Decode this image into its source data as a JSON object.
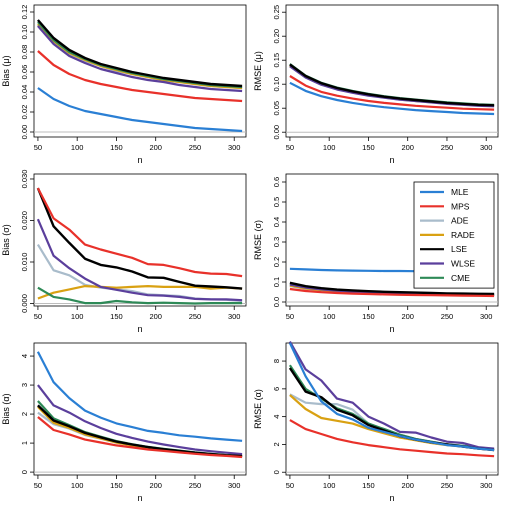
{
  "chart_data": [
    {
      "type": "line",
      "xlabel": "n",
      "ylabel": "Bias (μ)",
      "x": [
        50,
        70,
        90,
        110,
        130,
        150,
        170,
        190,
        210,
        230,
        250,
        270,
        290,
        310
      ],
      "xticks": [
        50,
        100,
        150,
        200,
        250,
        300
      ],
      "yticks": [
        0.0,
        0.02,
        0.04,
        0.06,
        0.08,
        0.1,
        0.12
      ],
      "ytick_labels": [
        "0.00",
        "0.02",
        "0.04",
        "0.06",
        "0.08",
        "0.10",
        "0.12"
      ],
      "xlim": [
        45,
        315
      ],
      "ylim": [
        -0.005,
        0.127
      ],
      "reference_line": 0,
      "series": [
        {
          "name": "MLE",
          "values": [
            0.044,
            0.033,
            0.026,
            0.021,
            0.018,
            0.015,
            0.012,
            0.01,
            0.008,
            0.006,
            0.004,
            0.003,
            0.002,
            0.001
          ]
        },
        {
          "name": "MPS",
          "values": [
            0.081,
            0.067,
            0.058,
            0.052,
            0.048,
            0.045,
            0.042,
            0.04,
            0.038,
            0.036,
            0.034,
            0.033,
            0.032,
            0.031
          ]
        },
        {
          "name": "ADE",
          "values": [
            0.107,
            0.09,
            0.078,
            0.071,
            0.066,
            0.061,
            0.058,
            0.055,
            0.052,
            0.05,
            0.048,
            0.046,
            0.045,
            0.044
          ]
        },
        {
          "name": "RADE",
          "values": [
            0.108,
            0.091,
            0.079,
            0.072,
            0.066,
            0.062,
            0.058,
            0.055,
            0.052,
            0.05,
            0.048,
            0.046,
            0.045,
            0.044
          ]
        },
        {
          "name": "LSE",
          "values": [
            0.112,
            0.094,
            0.082,
            0.074,
            0.068,
            0.064,
            0.06,
            0.057,
            0.054,
            0.052,
            0.05,
            0.048,
            0.047,
            0.046
          ]
        },
        {
          "name": "WLSE",
          "values": [
            0.106,
            0.088,
            0.076,
            0.069,
            0.063,
            0.059,
            0.055,
            0.052,
            0.05,
            0.047,
            0.045,
            0.043,
            0.042,
            0.041
          ]
        },
        {
          "name": "CME",
          "values": [
            0.11,
            0.092,
            0.08,
            0.073,
            0.067,
            0.063,
            0.059,
            0.056,
            0.053,
            0.051,
            0.049,
            0.047,
            0.046,
            0.045
          ]
        }
      ]
    },
    {
      "type": "line",
      "xlabel": "n",
      "ylabel": "RMSE (μ)",
      "x": [
        50,
        70,
        90,
        110,
        130,
        150,
        170,
        190,
        210,
        230,
        250,
        270,
        290,
        310
      ],
      "xticks": [
        50,
        100,
        150,
        200,
        250,
        300
      ],
      "yticks": [
        0.0,
        0.05,
        0.1,
        0.15,
        0.2,
        0.25
      ],
      "ytick_labels": [
        "0.00",
        "0.05",
        "0.10",
        "0.15",
        "0.20",
        "0.25"
      ],
      "xlim": [
        45,
        315
      ],
      "ylim": [
        -0.01,
        0.265
      ],
      "reference_line": 0,
      "series": [
        {
          "name": "MLE",
          "values": [
            0.103,
            0.086,
            0.075,
            0.067,
            0.061,
            0.056,
            0.052,
            0.049,
            0.046,
            0.044,
            0.042,
            0.04,
            0.039,
            0.038
          ]
        },
        {
          "name": "MPS",
          "values": [
            0.117,
            0.097,
            0.084,
            0.076,
            0.07,
            0.065,
            0.061,
            0.058,
            0.055,
            0.053,
            0.051,
            0.049,
            0.048,
            0.047
          ]
        },
        {
          "name": "ADE",
          "values": [
            0.138,
            0.114,
            0.099,
            0.09,
            0.083,
            0.077,
            0.072,
            0.068,
            0.065,
            0.062,
            0.06,
            0.058,
            0.056,
            0.055
          ]
        },
        {
          "name": "RADE",
          "values": [
            0.139,
            0.115,
            0.1,
            0.09,
            0.083,
            0.077,
            0.073,
            0.069,
            0.065,
            0.063,
            0.06,
            0.058,
            0.056,
            0.055
          ]
        },
        {
          "name": "LSE",
          "values": [
            0.141,
            0.117,
            0.102,
            0.092,
            0.085,
            0.079,
            0.074,
            0.07,
            0.067,
            0.064,
            0.061,
            0.059,
            0.057,
            0.056
          ]
        },
        {
          "name": "WLSE",
          "values": [
            0.137,
            0.114,
            0.099,
            0.089,
            0.082,
            0.076,
            0.072,
            0.068,
            0.065,
            0.062,
            0.059,
            0.057,
            0.055,
            0.054
          ]
        },
        {
          "name": "CME",
          "values": [
            0.142,
            0.118,
            0.103,
            0.093,
            0.086,
            0.08,
            0.075,
            0.071,
            0.068,
            0.065,
            0.062,
            0.06,
            0.058,
            0.057
          ]
        }
      ]
    },
    {
      "type": "line",
      "xlabel": "n",
      "ylabel": "Bias (σ)",
      "x": [
        50,
        70,
        90,
        110,
        130,
        150,
        170,
        190,
        210,
        230,
        250,
        270,
        290,
        310
      ],
      "xticks": [
        50,
        100,
        150,
        200,
        250,
        300
      ],
      "yticks": [
        0.0,
        0.01,
        0.02,
        0.03
      ],
      "ytick_labels": [
        "0.000",
        "0.010",
        "0.020",
        "0.030"
      ],
      "xlim": [
        45,
        315
      ],
      "ylim": [
        -0.0006,
        0.0312
      ],
      "reference_line": 0,
      "series": [
        {
          "name": "MPS",
          "values": [
            0.0278,
            0.0205,
            0.0178,
            0.0142,
            0.013,
            0.012,
            0.011,
            0.0095,
            0.0093,
            0.0085,
            0.0076,
            0.0072,
            0.0071,
            0.0066
          ]
        },
        {
          "name": "ADE",
          "values": [
            0.0142,
            0.008,
            0.0068,
            0.0045,
            0.0038,
            0.0034,
            0.003,
            0.0022,
            0.002,
            0.0018,
            0.0012,
            0.001,
            0.0009,
            0.0006
          ]
        },
        {
          "name": "RADE",
          "values": [
            0.0012,
            0.0026,
            0.0034,
            0.0042,
            0.004,
            0.0038,
            0.004,
            0.0042,
            0.004,
            0.004,
            0.004,
            0.0036,
            0.0038,
            0.0036
          ]
        },
        {
          "name": "LSE",
          "values": [
            0.0278,
            0.0186,
            0.0146,
            0.0108,
            0.0093,
            0.0087,
            0.0077,
            0.0063,
            0.0062,
            0.0052,
            0.0043,
            0.0041,
            0.0039,
            0.0036
          ]
        },
        {
          "name": "WLSE",
          "values": [
            0.0203,
            0.0115,
            0.0085,
            0.006,
            0.004,
            0.0033,
            0.0026,
            0.002,
            0.0019,
            0.0016,
            0.0011,
            0.001,
            0.001,
            0.0008
          ]
        },
        {
          "name": "CME",
          "values": [
            0.0038,
            0.0016,
            0.001,
            0.0001,
            0.0001,
            0.0006,
            0.0003,
            0.0001,
            0.0002,
            0.0001,
            0.0,
            0.0001,
            0.0001,
            0.0001
          ]
        }
      ]
    },
    {
      "type": "line",
      "xlabel": "n",
      "ylabel": "RMSE (σ)",
      "x": [
        50,
        70,
        90,
        110,
        130,
        150,
        170,
        190,
        210,
        230,
        250,
        270,
        290,
        310
      ],
      "xticks": [
        50,
        100,
        150,
        200,
        250,
        300
      ],
      "yticks": [
        0.0,
        0.1,
        0.2,
        0.3,
        0.4,
        0.5,
        0.6
      ],
      "ytick_labels": [
        "0.0",
        "0.1",
        "0.2",
        "0.3",
        "0.4",
        "0.5",
        "0.6"
      ],
      "xlim": [
        45,
        315
      ],
      "ylim": [
        -0.02,
        0.64
      ],
      "reference_line": 0,
      "legend": {
        "position": "top-right",
        "entries": [
          "MLE",
          "MPS",
          "ADE",
          "RADE",
          "LSE",
          "WLSE",
          "CME"
        ]
      },
      "series": [
        {
          "name": "MLE",
          "values": [
            0.166,
            0.163,
            0.16,
            0.158,
            0.157,
            0.156,
            0.155,
            0.155,
            0.154,
            0.154,
            0.153,
            0.153,
            0.153,
            0.152
          ]
        },
        {
          "name": "MPS",
          "values": [
            0.065,
            0.055,
            0.049,
            0.045,
            0.042,
            0.04,
            0.038,
            0.036,
            0.035,
            0.034,
            0.033,
            0.032,
            0.031,
            0.03
          ]
        },
        {
          "name": "ADE",
          "values": [
            0.08,
            0.066,
            0.058,
            0.053,
            0.049,
            0.046,
            0.044,
            0.042,
            0.04,
            0.039,
            0.038,
            0.037,
            0.036,
            0.035
          ]
        },
        {
          "name": "RADE",
          "values": [
            0.082,
            0.068,
            0.06,
            0.055,
            0.051,
            0.048,
            0.046,
            0.044,
            0.042,
            0.041,
            0.04,
            0.039,
            0.038,
            0.037
          ]
        },
        {
          "name": "LSE",
          "values": [
            0.096,
            0.079,
            0.069,
            0.062,
            0.058,
            0.054,
            0.051,
            0.049,
            0.047,
            0.045,
            0.043,
            0.042,
            0.041,
            0.04
          ]
        },
        {
          "name": "WLSE",
          "values": [
            0.087,
            0.072,
            0.063,
            0.057,
            0.052,
            0.049,
            0.046,
            0.044,
            0.042,
            0.041,
            0.039,
            0.038,
            0.037,
            0.036
          ]
        },
        {
          "name": "CME",
          "values": [
            0.09,
            0.074,
            0.065,
            0.059,
            0.054,
            0.051,
            0.048,
            0.046,
            0.044,
            0.042,
            0.041,
            0.04,
            0.039,
            0.038
          ]
        }
      ]
    },
    {
      "type": "line",
      "xlabel": "n",
      "ylabel": "Bias (α)",
      "x": [
        50,
        70,
        90,
        110,
        130,
        150,
        170,
        190,
        210,
        230,
        250,
        270,
        290,
        310
      ],
      "xticks": [
        50,
        100,
        150,
        200,
        250,
        300
      ],
      "yticks": [
        0,
        1,
        2,
        3,
        4
      ],
      "ytick_labels": [
        "0",
        "1",
        "2",
        "3",
        "4"
      ],
      "xlim": [
        45,
        315
      ],
      "ylim": [
        -0.1,
        4.45
      ],
      "reference_line": 0,
      "series": [
        {
          "name": "MLE",
          "values": [
            4.15,
            3.1,
            2.55,
            2.12,
            1.88,
            1.68,
            1.55,
            1.42,
            1.35,
            1.27,
            1.22,
            1.16,
            1.12,
            1.08
          ]
        },
        {
          "name": "MPS",
          "values": [
            1.9,
            1.45,
            1.3,
            1.12,
            1.02,
            0.92,
            0.85,
            0.78,
            0.73,
            0.68,
            0.63,
            0.59,
            0.56,
            0.52
          ]
        },
        {
          "name": "ADE",
          "values": [
            2.05,
            1.65,
            1.5,
            1.28,
            1.15,
            1.02,
            0.93,
            0.85,
            0.78,
            0.72,
            0.66,
            0.62,
            0.58,
            0.54
          ]
        },
        {
          "name": "RADE",
          "values": [
            2.25,
            1.7,
            1.52,
            1.3,
            1.16,
            1.02,
            0.92,
            0.84,
            0.77,
            0.71,
            0.66,
            0.61,
            0.57,
            0.54
          ]
        },
        {
          "name": "LSE",
          "values": [
            2.3,
            1.78,
            1.58,
            1.35,
            1.2,
            1.05,
            0.95,
            0.86,
            0.79,
            0.73,
            0.67,
            0.62,
            0.58,
            0.55
          ]
        },
        {
          "name": "WLSE",
          "values": [
            3.0,
            2.3,
            2.05,
            1.75,
            1.52,
            1.32,
            1.18,
            1.05,
            0.95,
            0.86,
            0.78,
            0.72,
            0.67,
            0.62
          ]
        },
        {
          "name": "CME",
          "values": [
            2.45,
            1.85,
            1.62,
            1.38,
            1.22,
            1.07,
            0.96,
            0.87,
            0.8,
            0.74,
            0.68,
            0.63,
            0.59,
            0.56
          ]
        }
      ]
    },
    {
      "type": "line",
      "xlabel": "n",
      "ylabel": "RMSE (α)",
      "x": [
        50,
        70,
        90,
        110,
        130,
        150,
        170,
        190,
        210,
        230,
        250,
        270,
        290,
        310
      ],
      "xticks": [
        50,
        100,
        150,
        200,
        250,
        300
      ],
      "yticks": [
        0,
        2,
        4,
        6,
        8
      ],
      "ytick_labels": [
        "0",
        "2",
        "4",
        "6",
        "8"
      ],
      "xlim": [
        45,
        315
      ],
      "ylim": [
        -0.2,
        9.3
      ],
      "reference_line": 0,
      "series": [
        {
          "name": "MLE",
          "values": [
            9.3,
            6.9,
            5.1,
            4.2,
            3.8,
            3.2,
            2.9,
            2.6,
            2.35,
            2.15,
            1.95,
            1.85,
            1.7,
            1.6
          ]
        },
        {
          "name": "MPS",
          "values": [
            3.75,
            3.1,
            2.75,
            2.4,
            2.15,
            1.95,
            1.8,
            1.65,
            1.55,
            1.45,
            1.35,
            1.3,
            1.22,
            1.15
          ]
        },
        {
          "name": "ADE",
          "values": [
            5.6,
            5.0,
            4.9,
            4.9,
            4.5,
            3.5,
            3.1,
            2.7,
            2.4,
            2.2,
            2.0,
            1.9,
            1.75,
            1.65
          ]
        },
        {
          "name": "RADE",
          "values": [
            5.55,
            4.55,
            3.9,
            3.7,
            3.5,
            3.1,
            2.8,
            2.5,
            2.3,
            2.1,
            1.95,
            1.85,
            1.7,
            1.6
          ]
        },
        {
          "name": "LSE",
          "values": [
            7.5,
            5.8,
            5.4,
            4.5,
            4.1,
            3.4,
            3.0,
            2.6,
            2.35,
            2.15,
            2.0,
            1.85,
            1.7,
            1.6
          ]
        },
        {
          "name": "WLSE",
          "values": [
            9.4,
            7.4,
            6.6,
            5.3,
            5.0,
            4.0,
            3.5,
            2.9,
            2.85,
            2.5,
            2.2,
            2.1,
            1.8,
            1.7
          ]
        },
        {
          "name": "CME",
          "values": [
            7.7,
            6.0,
            5.3,
            4.6,
            4.2,
            3.5,
            3.1,
            2.7,
            2.4,
            2.2,
            2.0,
            1.9,
            1.75,
            1.6
          ]
        }
      ]
    }
  ],
  "colors": {
    "MLE": "#2a7fd4",
    "MPS": "#e8312a",
    "ADE": "#a9bccb",
    "RADE": "#d9a112",
    "LSE": "#000000",
    "WLSE": "#5b3f9c",
    "CME": "#2e8a57",
    "reference": "#bdbdbd"
  }
}
